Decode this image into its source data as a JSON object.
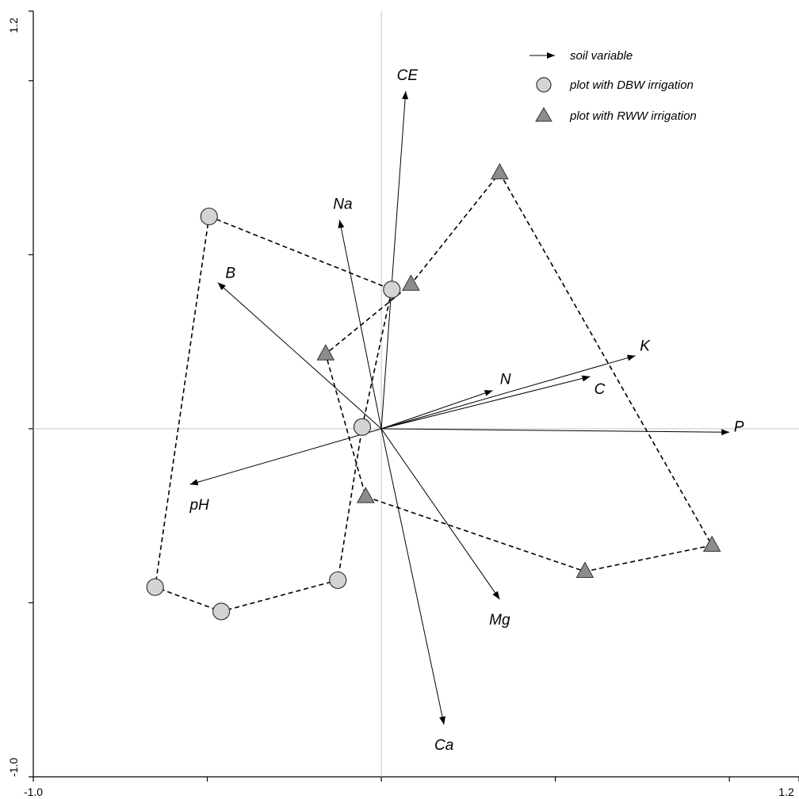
{
  "chart_data": {
    "type": "scatter",
    "title": "",
    "xlim": [
      -1.0,
      1.2
    ],
    "ylim": [
      -1.0,
      1.2
    ],
    "x_tick_labels": [
      "-1.0",
      "1.2"
    ],
    "y_tick_labels": [
      "-1.0",
      "1.2"
    ],
    "tick_values": [
      -1.0,
      -0.5,
      0.0,
      0.5,
      1.0,
      1.2
    ],
    "grid": false,
    "zero_lines": true,
    "legend_placement": "top-right",
    "legend": [
      {
        "symbol": "arrow",
        "label": "soil variable"
      },
      {
        "symbol": "circle",
        "label": "plot with DBW irrigation"
      },
      {
        "symbol": "triangle",
        "label": "plot with RWW irrigation"
      }
    ],
    "vectors": [
      {
        "name": "CE",
        "x": 0.07,
        "y": 0.97
      },
      {
        "name": "Na",
        "x": -0.12,
        "y": 0.6
      },
      {
        "name": "B",
        "x": -0.47,
        "y": 0.42
      },
      {
        "name": "K",
        "x": 0.73,
        "y": 0.21
      },
      {
        "name": "N",
        "x": 0.32,
        "y": 0.11
      },
      {
        "name": "C",
        "x": 0.6,
        "y": 0.15
      },
      {
        "name": "P",
        "x": 1.0,
        "y": -0.01
      },
      {
        "name": "pH",
        "x": -0.55,
        "y": -0.16
      },
      {
        "name": "Mg",
        "x": 0.34,
        "y": -0.49
      },
      {
        "name": "Ca",
        "x": 0.18,
        "y": -0.85
      }
    ],
    "series": [
      {
        "name": "plot with DBW irrigation",
        "marker": "circle",
        "points": [
          {
            "x": -0.495,
            "y": 0.61
          },
          {
            "x": 0.03,
            "y": 0.4
          },
          {
            "x": -0.055,
            "y": 0.005
          },
          {
            "x": -0.125,
            "y": -0.435
          },
          {
            "x": -0.46,
            "y": -0.525
          },
          {
            "x": -0.65,
            "y": -0.455
          }
        ]
      },
      {
        "name": "plot with RWW irrigation",
        "marker": "triangle",
        "points": [
          {
            "x": 0.34,
            "y": 0.735
          },
          {
            "x": 0.95,
            "y": -0.335
          },
          {
            "x": 0.585,
            "y": -0.41
          },
          {
            "x": -0.045,
            "y": -0.195
          },
          {
            "x": -0.16,
            "y": 0.215
          },
          {
            "x": 0.085,
            "y": 0.415
          }
        ]
      }
    ]
  }
}
